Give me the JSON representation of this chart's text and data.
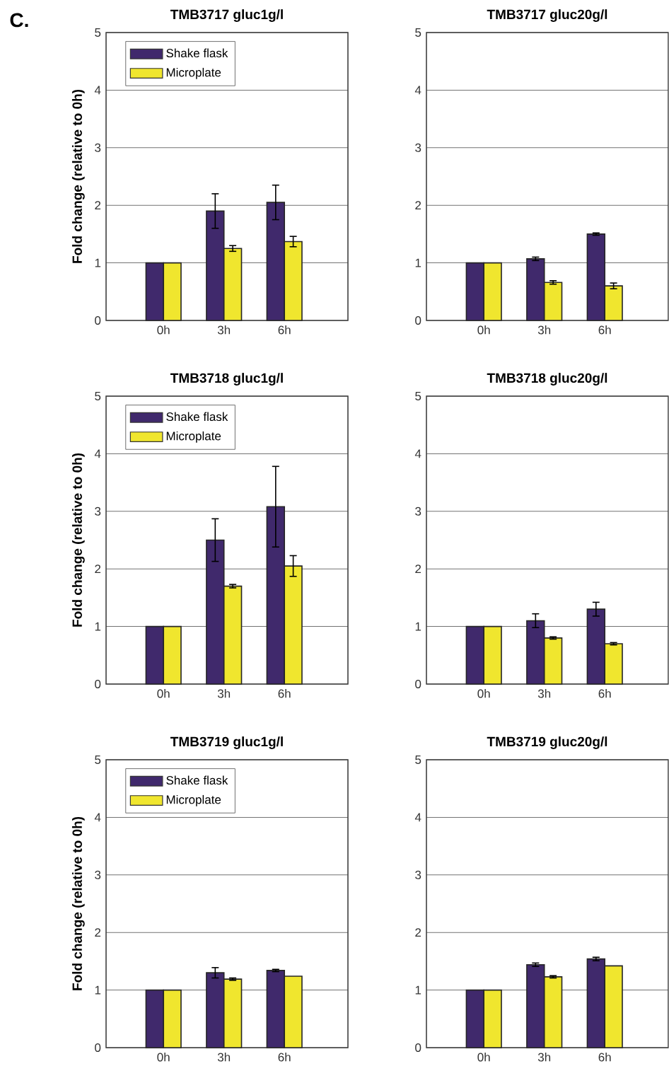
{
  "chart_data": [
    {
      "type": "bar",
      "title": "TMB3717 gluc1g/l",
      "ylabel": "Fold change (relative to 0h)",
      "categories": [
        "0h",
        "3h",
        "6h"
      ],
      "series": [
        {
          "name": "Shake flask",
          "color": "#40296c",
          "values": [
            1,
            1.9,
            2.05
          ],
          "errors": [
            null,
            0.3,
            0.3
          ]
        },
        {
          "name": "Microplate",
          "color": "#f0e62e",
          "values": [
            1,
            1.25,
            1.37
          ],
          "errors": [
            null,
            0.05,
            0.09
          ]
        }
      ],
      "ylim": [
        0,
        5
      ],
      "yticks": [
        0,
        1,
        2,
        3,
        4,
        5
      ],
      "grid": "y",
      "legend": "top left",
      "annotations": [
        "C."
      ]
    },
    {
      "type": "bar",
      "title": "TMB3717 gluc20g/l",
      "categories": [
        "0h",
        "3h",
        "6h"
      ],
      "series": [
        {
          "color": "#40296c",
          "values": [
            1,
            1.07,
            1.5
          ],
          "errors": [
            null,
            0.03,
            0.02
          ]
        },
        {
          "color": "#f0e62e",
          "values": [
            1,
            0.66,
            0.6
          ],
          "errors": [
            null,
            0.03,
            0.05
          ]
        }
      ],
      "ylim": [
        0,
        5
      ],
      "yticks": [
        0,
        1,
        2,
        3,
        4,
        5
      ],
      "grid": "y"
    },
    {
      "type": "bar",
      "title": "TMB3718 gluc1g/l",
      "ylabel": "Fold change (relative to 0h)",
      "categories": [
        "0h",
        "3h",
        "6h"
      ],
      "series": [
        {
          "name": "Shake flask",
          "color": "#40296c",
          "values": [
            1,
            2.5,
            3.08
          ],
          "errors": [
            null,
            0.37,
            0.7
          ]
        },
        {
          "name": "Microplate",
          "color": "#f0e62e",
          "values": [
            1,
            1.7,
            2.05
          ],
          "errors": [
            null,
            0.03,
            0.18
          ]
        }
      ],
      "ylim": [
        0,
        5
      ],
      "yticks": [
        0,
        1,
        2,
        3,
        4,
        5
      ],
      "grid": "y",
      "legend": "top left"
    },
    {
      "type": "bar",
      "title": "TMB3718 gluc20g/l",
      "categories": [
        "0h",
        "3h",
        "6h"
      ],
      "series": [
        {
          "color": "#40296c",
          "values": [
            1,
            1.1,
            1.3
          ],
          "errors": [
            null,
            0.12,
            0.12
          ]
        },
        {
          "color": "#f0e62e",
          "values": [
            1,
            0.8,
            0.7
          ],
          "errors": [
            null,
            0.02,
            0.02
          ]
        }
      ],
      "ylim": [
        0,
        5
      ],
      "yticks": [
        0,
        1,
        2,
        3,
        4,
        5
      ],
      "grid": "y"
    },
    {
      "type": "bar",
      "title": "TMB3719 gluc1g/l",
      "ylabel": "Fold change (relative to 0h)",
      "categories": [
        "0h",
        "3h",
        "6h"
      ],
      "series": [
        {
          "name": "Shake flask",
          "color": "#40296c",
          "values": [
            1,
            1.3,
            1.34
          ],
          "errors": [
            null,
            0.09,
            0.02
          ]
        },
        {
          "name": "Microplate",
          "color": "#f0e62e",
          "values": [
            1,
            1.19,
            1.24
          ],
          "errors": [
            null,
            0.02,
            null
          ]
        }
      ],
      "ylim": [
        0,
        5
      ],
      "yticks": [
        0,
        1,
        2,
        3,
        4,
        5
      ],
      "grid": "y",
      "legend": "top left"
    },
    {
      "type": "bar",
      "title": "TMB3719 gluc20g/l",
      "categories": [
        "0h",
        "3h",
        "6h"
      ],
      "series": [
        {
          "color": "#40296c",
          "values": [
            1,
            1.44,
            1.54
          ],
          "errors": [
            null,
            0.03,
            0.03
          ]
        },
        {
          "color": "#f0e62e",
          "values": [
            1,
            1.23,
            1.42
          ],
          "errors": [
            null,
            0.02,
            null
          ]
        }
      ],
      "ylim": [
        0,
        5
      ],
      "yticks": [
        0,
        1,
        2,
        3,
        4,
        5
      ],
      "grid": "y"
    }
  ]
}
